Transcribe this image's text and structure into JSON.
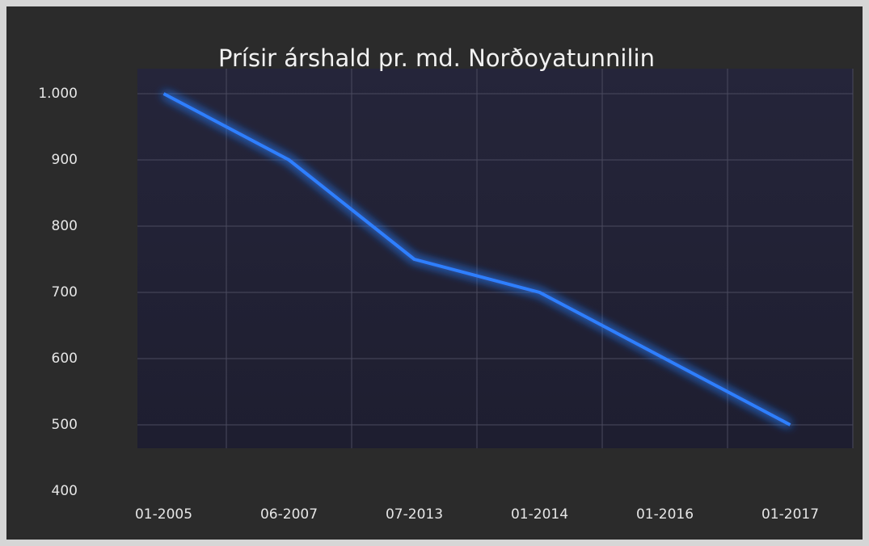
{
  "chart_data": {
    "type": "line",
    "title": "Prísir árshald pr. md. Norðoyatunnilin",
    "categories": [
      "01-2005",
      "06-2007",
      "07-2013",
      "01-2014",
      "01-2016",
      "01-2017"
    ],
    "values": [
      1000,
      900,
      750,
      700,
      600,
      500
    ],
    "color": "#2f7fff",
    "ylim": [
      400,
      1000
    ],
    "yticks": [
      400,
      500,
      600,
      700,
      800,
      900,
      {
        "value": 1000,
        "label": "1.000"
      }
    ],
    "grid": true
  }
}
